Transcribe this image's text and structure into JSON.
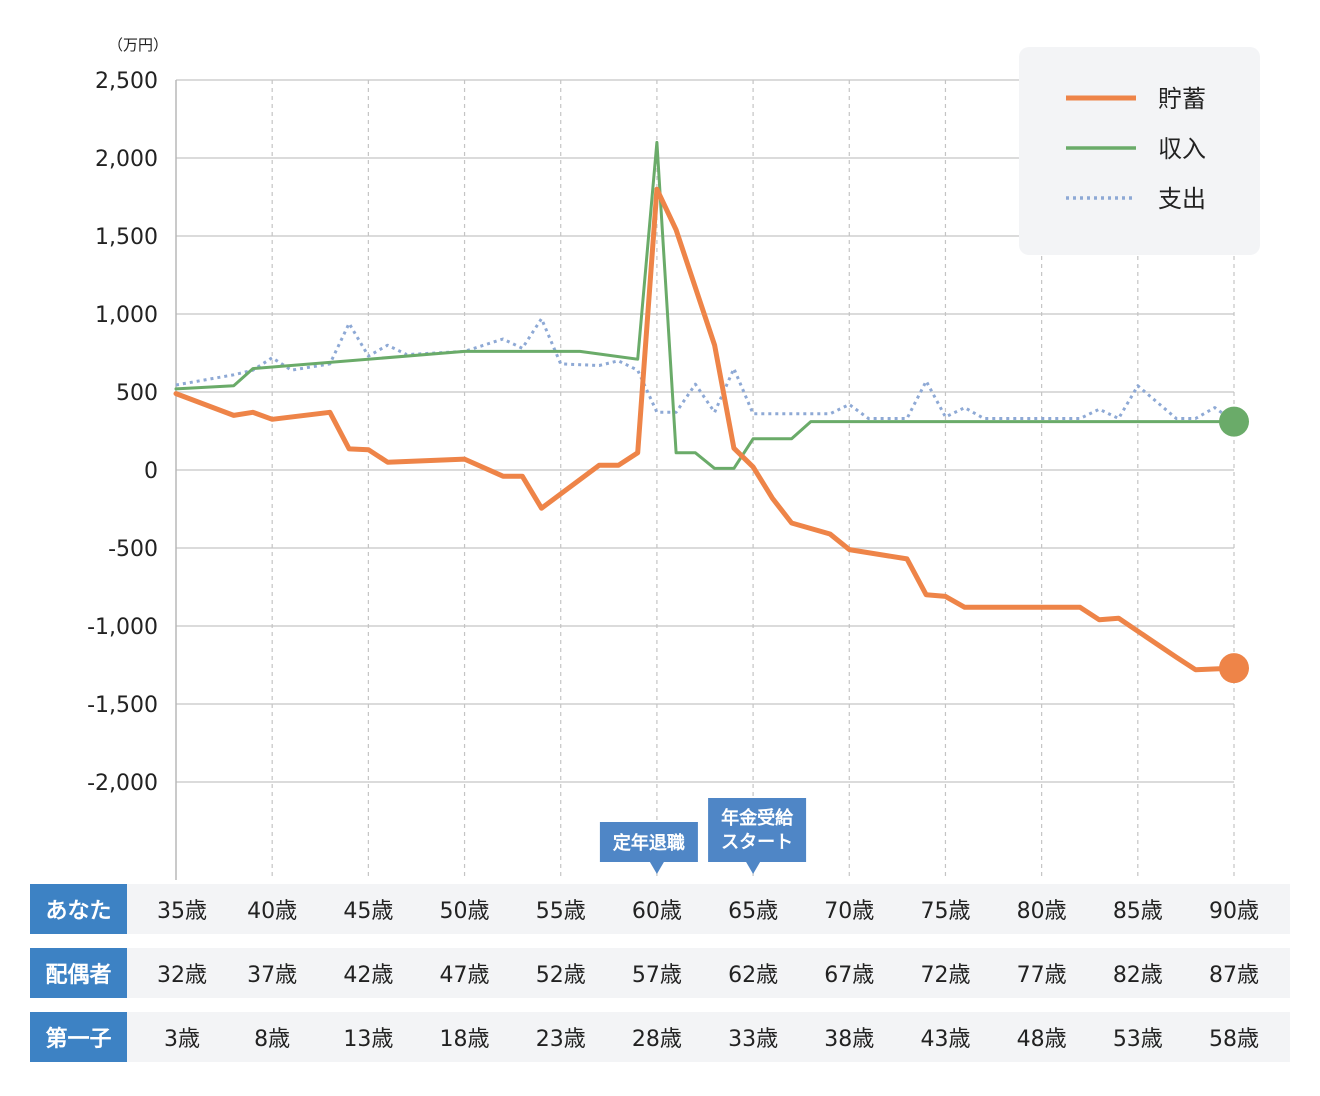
{
  "chart_data": {
    "type": "line",
    "unit_label": "（万円）",
    "ylim": [
      -2000,
      2500
    ],
    "y_ticks": [
      2500,
      2000,
      1500,
      1000,
      500,
      0,
      -500,
      -1000,
      -1500,
      -2000
    ],
    "y_tick_labels": [
      "2,500",
      "2,000",
      "1,500",
      "1,000",
      "500",
      "0",
      "-500",
      "-1,000",
      "-1,500",
      "-2,000"
    ],
    "x_range": [
      35,
      90
    ],
    "x_major_ticks": [
      35,
      40,
      45,
      50,
      55,
      60,
      65,
      70,
      75,
      80,
      85,
      90
    ],
    "grid": true,
    "legend_position": "top-right",
    "series": [
      {
        "name": "貯蓄",
        "color": "#ee8448",
        "style": "solid",
        "end_marker": true,
        "x": [
          35,
          38,
          39,
          40,
          43,
          44,
          45,
          46,
          50,
          52,
          53,
          54,
          57,
          58,
          59,
          60,
          61,
          63,
          64,
          65,
          66,
          67,
          69,
          70,
          73,
          74,
          75,
          76,
          82,
          83,
          84,
          87,
          88,
          90
        ],
        "values": [
          490,
          350,
          370,
          325,
          370,
          135,
          130,
          50,
          70,
          -40,
          -40,
          -245,
          30,
          30,
          110,
          1800,
          1540,
          800,
          140,
          20,
          -180,
          -340,
          -410,
          -510,
          -570,
          -800,
          -810,
          -880,
          -880,
          -960,
          -950,
          -1200,
          -1280,
          -1270
        ]
      },
      {
        "name": "収入",
        "color": "#6aab69",
        "style": "solid",
        "end_marker": true,
        "x": [
          35,
          38,
          39,
          50,
          56,
          59,
          60,
          61,
          62,
          63,
          64,
          65,
          67,
          68,
          90
        ],
        "values": [
          520,
          540,
          650,
          760,
          760,
          710,
          2100,
          110,
          110,
          10,
          10,
          200,
          200,
          310,
          310
        ]
      },
      {
        "name": "支出",
        "color": "#8ea9d5",
        "style": "dotted",
        "end_marker": false,
        "x": [
          35,
          38,
          39,
          40,
          41,
          43,
          44,
          45,
          46,
          47,
          50,
          52,
          53,
          54,
          55,
          57,
          58,
          59,
          60,
          61,
          62,
          63,
          64,
          65,
          68,
          69,
          70,
          71,
          73,
          74,
          75,
          76,
          77,
          82,
          83,
          84,
          85,
          87,
          88,
          89,
          90
        ],
        "values": [
          545,
          610,
          640,
          720,
          640,
          680,
          940,
          730,
          800,
          740,
          760,
          840,
          780,
          970,
          680,
          670,
          700,
          640,
          370,
          370,
          550,
          370,
          650,
          360,
          360,
          360,
          420,
          330,
          330,
          570,
          340,
          400,
          330,
          330,
          390,
          330,
          540,
          330,
          330,
          400,
          310
        ]
      }
    ],
    "annotations": [
      {
        "x": 60,
        "lines": [
          "定年退職"
        ]
      },
      {
        "x": 65,
        "lines": [
          "年金受給",
          "スタート"
        ]
      }
    ],
    "annotation_color": "#4f86c6"
  },
  "age_table": {
    "rows": [
      {
        "label": "あなた",
        "values": [
          "35歳",
          "40歳",
          "45歳",
          "50歳",
          "55歳",
          "60歳",
          "65歳",
          "70歳",
          "75歳",
          "80歳",
          "85歳",
          "90歳"
        ]
      },
      {
        "label": "配偶者",
        "values": [
          "32歳",
          "37歳",
          "42歳",
          "47歳",
          "52歳",
          "57歳",
          "62歳",
          "67歳",
          "72歳",
          "77歳",
          "82歳",
          "87歳"
        ]
      },
      {
        "label": "第一子",
        "values": [
          "3歳",
          "8歳",
          "13歳",
          "18歳",
          "23歳",
          "28歳",
          "33歳",
          "38歳",
          "43歳",
          "48歳",
          "53歳",
          "58歳"
        ]
      }
    ]
  }
}
